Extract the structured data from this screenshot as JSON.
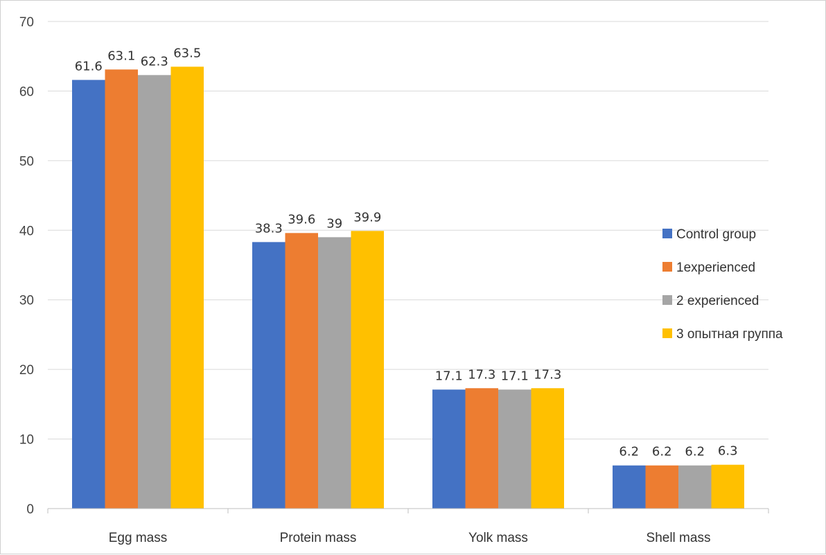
{
  "chart_data": {
    "type": "bar",
    "categories": [
      "Egg mass",
      "Protein mass",
      "Yolk mass",
      "Shell mass"
    ],
    "series": [
      {
        "name": "Control group",
        "values": [
          61.6,
          38.3,
          17.1,
          6.2
        ],
        "color": "#4472C4"
      },
      {
        "name": "1experienced",
        "values": [
          63.1,
          39.6,
          17.3,
          6.2
        ],
        "color": "#ED7D31"
      },
      {
        "name": "2 experienced",
        "values": [
          62.3,
          39,
          17.1,
          6.2
        ],
        "color": "#A5A5A5"
      },
      {
        "name": "3 опытная группа",
        "values": [
          63.5,
          39.9,
          17.3,
          6.3
        ],
        "color": "#FFC000"
      }
    ],
    "ylim": [
      0,
      70
    ],
    "yticks": [
      0,
      10,
      20,
      30,
      40,
      50,
      60,
      70
    ],
    "grid": true,
    "legend": "right",
    "data_labels": true
  }
}
